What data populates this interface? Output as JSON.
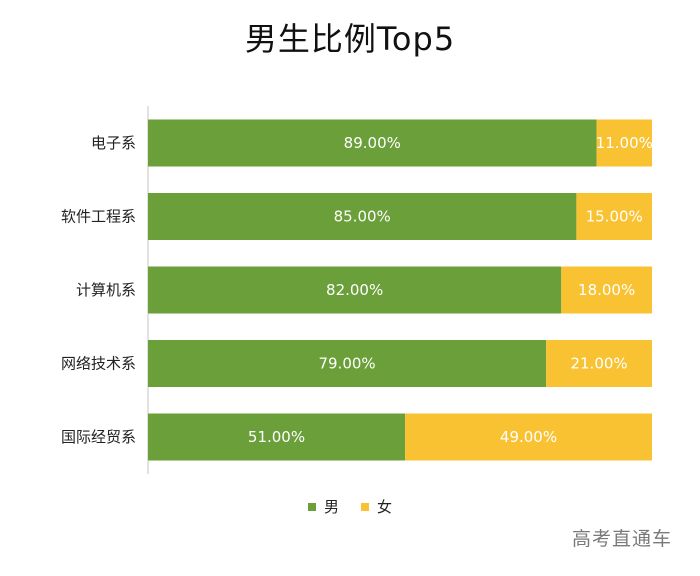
{
  "chart_data": {
    "type": "bar",
    "orientation": "horizontal",
    "stacked": true,
    "title": "男生比例Top5",
    "categories": [
      "电子系",
      "软件工程系",
      "计算机系",
      "网络技术系",
      "国际经贸系"
    ],
    "series": [
      {
        "name": "男",
        "color": "#6a9f3a",
        "values": [
          89.0,
          85.0,
          82.0,
          79.0,
          51.0
        ]
      },
      {
        "name": "女",
        "color": "#f8c233",
        "values": [
          11.0,
          15.0,
          18.0,
          21.0,
          49.0
        ]
      }
    ],
    "value_labels": [
      [
        "89.00%",
        "85.00%",
        "82.00%",
        "79.00%",
        "51.00%"
      ],
      [
        "11.00%",
        "15.00%",
        "18.00%",
        "21.00%",
        "49.00%"
      ]
    ],
    "xlim": [
      0,
      100
    ],
    "grid": false,
    "legend_position": "bottom"
  },
  "watermark": "高考直通车"
}
